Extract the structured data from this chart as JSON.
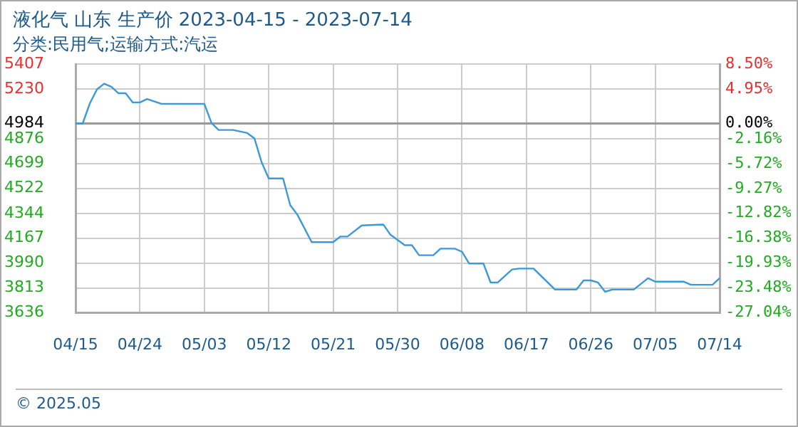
{
  "chart_data": {
    "type": "line",
    "title": "液化气 山东 生产价 2023-04-15 - 2023-07-14",
    "subtitle": "分类:民用气;运输方式:汽运",
    "annotations": [
      "© 2025.05"
    ],
    "x": [
      "2023-04-15",
      "2023-04-16",
      "2023-04-17",
      "2023-04-18",
      "2023-04-19",
      "2023-04-20",
      "2023-04-21",
      "2023-04-22",
      "2023-04-23",
      "2023-04-24",
      "2023-04-25",
      "2023-04-27",
      "2023-05-03",
      "2023-05-04",
      "2023-05-05",
      "2023-05-07",
      "2023-05-09",
      "2023-05-10",
      "2023-05-11",
      "2023-05-12",
      "2023-05-14",
      "2023-05-15",
      "2023-05-16",
      "2023-05-18",
      "2023-05-21",
      "2023-05-22",
      "2023-05-23",
      "2023-05-25",
      "2023-05-28",
      "2023-05-29",
      "2023-05-31",
      "2023-06-01",
      "2023-06-02",
      "2023-06-04",
      "2023-06-05",
      "2023-06-07",
      "2023-06-08",
      "2023-06-09",
      "2023-06-11",
      "2023-06-12",
      "2023-06-13",
      "2023-06-15",
      "2023-06-16",
      "2023-06-18",
      "2023-06-21",
      "2023-06-24",
      "2023-06-25",
      "2023-06-26",
      "2023-06-27",
      "2023-06-28",
      "2023-06-29",
      "2023-07-02",
      "2023-07-04",
      "2023-07-05",
      "2023-07-09",
      "2023-07-10",
      "2023-07-13",
      "2023-07-14"
    ],
    "series": [
      {
        "color": "#3a9ad9",
        "values": [
          4984,
          4984,
          5127,
          5227,
          5267,
          5246,
          5199,
          5199,
          5134,
          5134,
          5158,
          5124,
          5124,
          4987,
          4938,
          4938,
          4916,
          4878,
          4708,
          4593,
          4593,
          4403,
          4335,
          4139,
          4139,
          4179,
          4179,
          4258,
          4265,
          4192,
          4118,
          4118,
          4046,
          4046,
          4093,
          4093,
          4071,
          3987,
          3987,
          3852,
          3852,
          3945,
          3951,
          3951,
          3802,
          3802,
          3867,
          3867,
          3852,
          3786,
          3802,
          3802,
          3883,
          3858,
          3858,
          3836,
          3836,
          3883
        ]
      }
    ],
    "xlim": [
      "2023-04-15",
      "2023-07-14"
    ],
    "xticks": [
      {
        "value": "2023-04-15",
        "label": "04/15"
      },
      {
        "value": "2023-04-24",
        "label": "04/24"
      },
      {
        "value": "2023-05-03",
        "label": "05/03"
      },
      {
        "value": "2023-05-12",
        "label": "05/12"
      },
      {
        "value": "2023-05-21",
        "label": "05/21"
      },
      {
        "value": "2023-05-30",
        "label": "05/30"
      },
      {
        "value": "2023-06-08",
        "label": "06/08"
      },
      {
        "value": "2023-06-17",
        "label": "06/17"
      },
      {
        "value": "2023-06-26",
        "label": "06/26"
      },
      {
        "value": "2023-07-05",
        "label": "07/05"
      },
      {
        "value": "2023-07-14",
        "label": "07/14"
      }
    ],
    "ylim": [
      3636,
      5407
    ],
    "yticks": [
      3636,
      3813,
      3990,
      4167,
      4344,
      4522,
      4699,
      4876,
      4984,
      5230,
      5407
    ],
    "y2lim": [
      -27.04,
      8.5
    ],
    "y2ticks": [
      {
        "value": -27.04,
        "label": "-27.04%"
      },
      {
        "value": -23.48,
        "label": "-23.48%"
      },
      {
        "value": -19.93,
        "label": "-19.93%"
      },
      {
        "value": -16.38,
        "label": "-16.38%"
      },
      {
        "value": -12.82,
        "label": "-12.82%"
      },
      {
        "value": -9.27,
        "label": "-9.27%"
      },
      {
        "value": -5.72,
        "label": "-5.72%"
      },
      {
        "value": -2.16,
        "label": "-2.16%"
      },
      {
        "value": 0,
        "label": "0.00%"
      },
      {
        "value": 4.95,
        "label": "4.95%"
      },
      {
        "value": 8.5,
        "label": "8.50%"
      }
    ],
    "ref_lines": [
      {
        "axis": "y",
        "value": 4984,
        "color": "#999999"
      }
    ],
    "grid": true,
    "legend": false,
    "marker": "none",
    "line_style": "solid"
  }
}
